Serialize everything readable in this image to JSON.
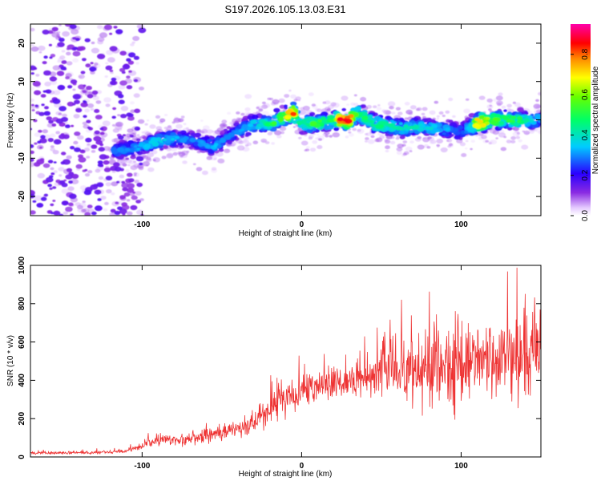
{
  "title": "S197.2026.105.13.03.E31",
  "chart_data": [
    {
      "type": "heatmap",
      "title": "S197.2026.105.13.03.E31",
      "xlabel": "Height of straight line (km)",
      "ylabel": "Frequency (Hz)",
      "xlim": [
        -170,
        150
      ],
      "ylim": [
        -25,
        25
      ],
      "xticks": [
        -100,
        0,
        100
      ],
      "yticks": [
        -20,
        -10,
        0,
        10,
        20
      ],
      "colorbar": {
        "label": "Normalized spectral amplitude",
        "range": [
          0,
          0.95
        ],
        "ticks": [
          "0.0",
          "0.2",
          "0.4",
          "0.6",
          "0.8"
        ]
      },
      "ridge": {
        "x": [
          -115,
          -100,
          -85,
          -70,
          -55,
          -45,
          -30,
          -20,
          -10,
          -5,
          0,
          10,
          20,
          25,
          30,
          35,
          45,
          60,
          80,
          100,
          105,
          110,
          120,
          140,
          150
        ],
        "y": [
          -8,
          -7,
          -5,
          -5,
          -7,
          -4,
          -1,
          -1,
          1,
          2,
          -1,
          -1,
          0,
          0,
          0,
          2,
          -1,
          -2,
          -2,
          -3,
          -2,
          -1,
          0,
          0,
          0
        ],
        "amplitude": [
          0.3,
          0.35,
          0.4,
          0.3,
          0.35,
          0.3,
          0.4,
          0.5,
          0.7,
          0.9,
          0.45,
          0.6,
          0.5,
          0.95,
          0.9,
          0.5,
          0.5,
          0.45,
          0.4,
          0.3,
          0.35,
          0.9,
          0.6,
          0.5,
          0.35
        ]
      },
      "noise": {
        "x_range": [
          -170,
          -110
        ],
        "y_range": [
          -25,
          25
        ],
        "amplitude": "0.05-0.3"
      }
    },
    {
      "type": "line",
      "title": "",
      "xlabel": "Height of straight line (km)",
      "ylabel": "SNR (10 * v/v)",
      "xlim": [
        -170,
        150
      ],
      "ylim": [
        0,
        1000
      ],
      "xticks": [
        -100,
        0,
        100
      ],
      "yticks": [
        0,
        200,
        400,
        600,
        800,
        1000
      ],
      "color": "#ee3333",
      "envelope": {
        "x": [
          -170,
          -140,
          -110,
          -100,
          -90,
          -75,
          -60,
          -45,
          -30,
          -20,
          -10,
          0,
          15,
          30,
          45,
          55,
          65,
          75,
          85,
          95,
          100,
          105,
          110,
          115,
          125,
          135,
          145,
          150
        ],
        "mean": [
          20,
          22,
          30,
          60,
          90,
          90,
          110,
          140,
          180,
          260,
          300,
          330,
          380,
          400,
          440,
          480,
          460,
          480,
          500,
          480,
          470,
          480,
          560,
          500,
          500,
          520,
          560,
          580
        ],
        "spread": [
          10,
          10,
          15,
          30,
          40,
          45,
          50,
          60,
          80,
          110,
          130,
          110,
          120,
          130,
          160,
          220,
          260,
          300,
          330,
          350,
          300,
          230,
          220,
          250,
          260,
          280,
          320,
          320
        ]
      }
    }
  ]
}
